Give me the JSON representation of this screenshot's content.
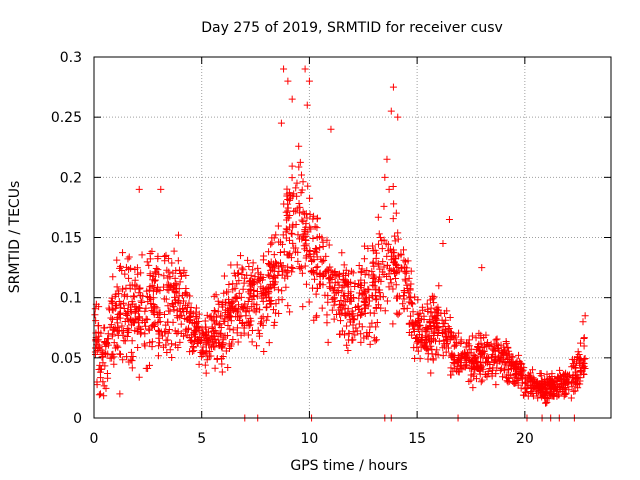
{
  "chart_data": {
    "type": "scatter",
    "title": "Day 275 of 2019, SRMTID for receiver cusv",
    "xlabel": "GPS time / hours",
    "ylabel": "SRMTID / TECUs",
    "xlim": [
      0,
      24
    ],
    "ylim": [
      0,
      0.3
    ],
    "xticks": [
      0,
      5,
      10,
      15,
      20
    ],
    "yticks": [
      0,
      0.05,
      0.1,
      0.15,
      0.2,
      0.25,
      0.3
    ],
    "xtick_labels": [
      "0",
      "5",
      "10",
      "15",
      "20"
    ],
    "ytick_labels": [
      "0",
      "0.05",
      "0.1",
      "0.15",
      "0.2",
      "0.25",
      "0.3"
    ],
    "grid": true,
    "marker": "+",
    "color": "#ff0000",
    "series": [
      {
        "name": "SRMTID",
        "envelope": [
          {
            "t": 0.0,
            "base": 0.07,
            "spread": 0.06
          },
          {
            "t": 0.5,
            "base": 0.05,
            "spread": 0.05
          },
          {
            "t": 1.0,
            "base": 0.085,
            "spread": 0.05
          },
          {
            "t": 2.0,
            "base": 0.09,
            "spread": 0.07
          },
          {
            "t": 3.0,
            "base": 0.095,
            "spread": 0.07
          },
          {
            "t": 4.0,
            "base": 0.1,
            "spread": 0.06
          },
          {
            "t": 5.0,
            "base": 0.06,
            "spread": 0.03
          },
          {
            "t": 6.0,
            "base": 0.08,
            "spread": 0.05
          },
          {
            "t": 7.0,
            "base": 0.1,
            "spread": 0.05
          },
          {
            "t": 8.0,
            "base": 0.1,
            "spread": 0.05
          },
          {
            "t": 9.0,
            "base": 0.15,
            "spread": 0.08
          },
          {
            "t": 9.5,
            "base": 0.17,
            "spread": 0.09
          },
          {
            "t": 10.0,
            "base": 0.14,
            "spread": 0.07
          },
          {
            "t": 11.0,
            "base": 0.11,
            "spread": 0.06
          },
          {
            "t": 12.0,
            "base": 0.09,
            "spread": 0.05
          },
          {
            "t": 13.0,
            "base": 0.11,
            "spread": 0.06
          },
          {
            "t": 14.0,
            "base": 0.14,
            "spread": 0.07
          },
          {
            "t": 15.0,
            "base": 0.07,
            "spread": 0.04
          },
          {
            "t": 16.0,
            "base": 0.075,
            "spread": 0.04
          },
          {
            "t": 17.0,
            "base": 0.045,
            "spread": 0.025
          },
          {
            "t": 18.0,
            "base": 0.05,
            "spread": 0.03
          },
          {
            "t": 19.0,
            "base": 0.05,
            "spread": 0.025
          },
          {
            "t": 20.0,
            "base": 0.03,
            "spread": 0.018
          },
          {
            "t": 21.0,
            "base": 0.025,
            "spread": 0.015
          },
          {
            "t": 22.0,
            "base": 0.03,
            "spread": 0.02
          },
          {
            "t": 22.8,
            "base": 0.05,
            "spread": 0.03
          }
        ],
        "points": [
          [
            0.3,
            0.02
          ],
          [
            1.2,
            0.02
          ],
          [
            2.1,
            0.19
          ],
          [
            3.1,
            0.19
          ],
          [
            8.8,
            0.29
          ],
          [
            9.0,
            0.28
          ],
          [
            9.8,
            0.29
          ],
          [
            10.0,
            0.28
          ],
          [
            9.2,
            0.265
          ],
          [
            9.9,
            0.26
          ],
          [
            8.7,
            0.245
          ],
          [
            11.0,
            0.24
          ],
          [
            13.9,
            0.275
          ],
          [
            13.8,
            0.255
          ],
          [
            14.1,
            0.25
          ],
          [
            13.6,
            0.215
          ],
          [
            13.5,
            0.2
          ],
          [
            13.7,
            0.19
          ],
          [
            16.5,
            0.165
          ],
          [
            16.2,
            0.145
          ],
          [
            18.0,
            0.125
          ],
          [
            22.8,
            0.085
          ],
          [
            22.7,
            0.08
          ],
          [
            7.0,
            0.0
          ],
          [
            7.6,
            0.0
          ],
          [
            10.1,
            0.0
          ],
          [
            13.5,
            0.0
          ],
          [
            13.8,
            0.0
          ],
          [
            16.9,
            0.0
          ],
          [
            20.1,
            0.0
          ],
          [
            20.8,
            0.0
          ],
          [
            21.2,
            0.0
          ],
          [
            21.6,
            0.0
          ],
          [
            22.3,
            0.0
          ]
        ],
        "dense_count": 2100
      }
    ]
  }
}
